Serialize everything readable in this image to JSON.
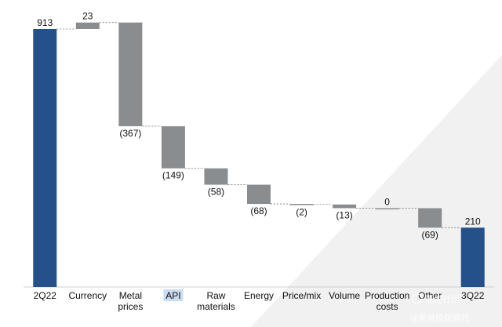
{
  "chart_data": {
    "type": "waterfall",
    "title": "",
    "xlabel": "",
    "ylabel": "",
    "ylim": [
      0,
      1000
    ],
    "grid": false,
    "categories": [
      [
        "2Q22"
      ],
      [
        "Currency"
      ],
      [
        "Metal",
        "prices"
      ],
      [
        "API"
      ],
      [
        "Raw",
        "materials"
      ],
      [
        "Energy"
      ],
      [
        "Price/mix"
      ],
      [
        "Volume"
      ],
      [
        "Production",
        "costs"
      ],
      [
        "Other"
      ],
      [
        "3Q22"
      ]
    ],
    "values": [
      913,
      23,
      -367,
      -149,
      -58,
      -68,
      -2,
      -13,
      0,
      -69,
      210
    ],
    "labels": [
      "913",
      "23",
      "(367)",
      "(149)",
      "(58)",
      "(68)",
      "(2)",
      "(13)",
      "0",
      "(69)",
      "210"
    ],
    "kinds": [
      "total",
      "delta",
      "delta",
      "delta",
      "delta",
      "delta",
      "delta",
      "delta",
      "delta",
      "delta",
      "total"
    ],
    "highlighted_category": "API",
    "colors": {
      "total": "#245189",
      "delta": "#8a8d90",
      "connector": "#7a7a7a",
      "highlight": "#c9dcf1"
    }
  },
  "watermarks": {
    "mid": "老虎社区",
    "bottom": "@美港股观察社"
  }
}
